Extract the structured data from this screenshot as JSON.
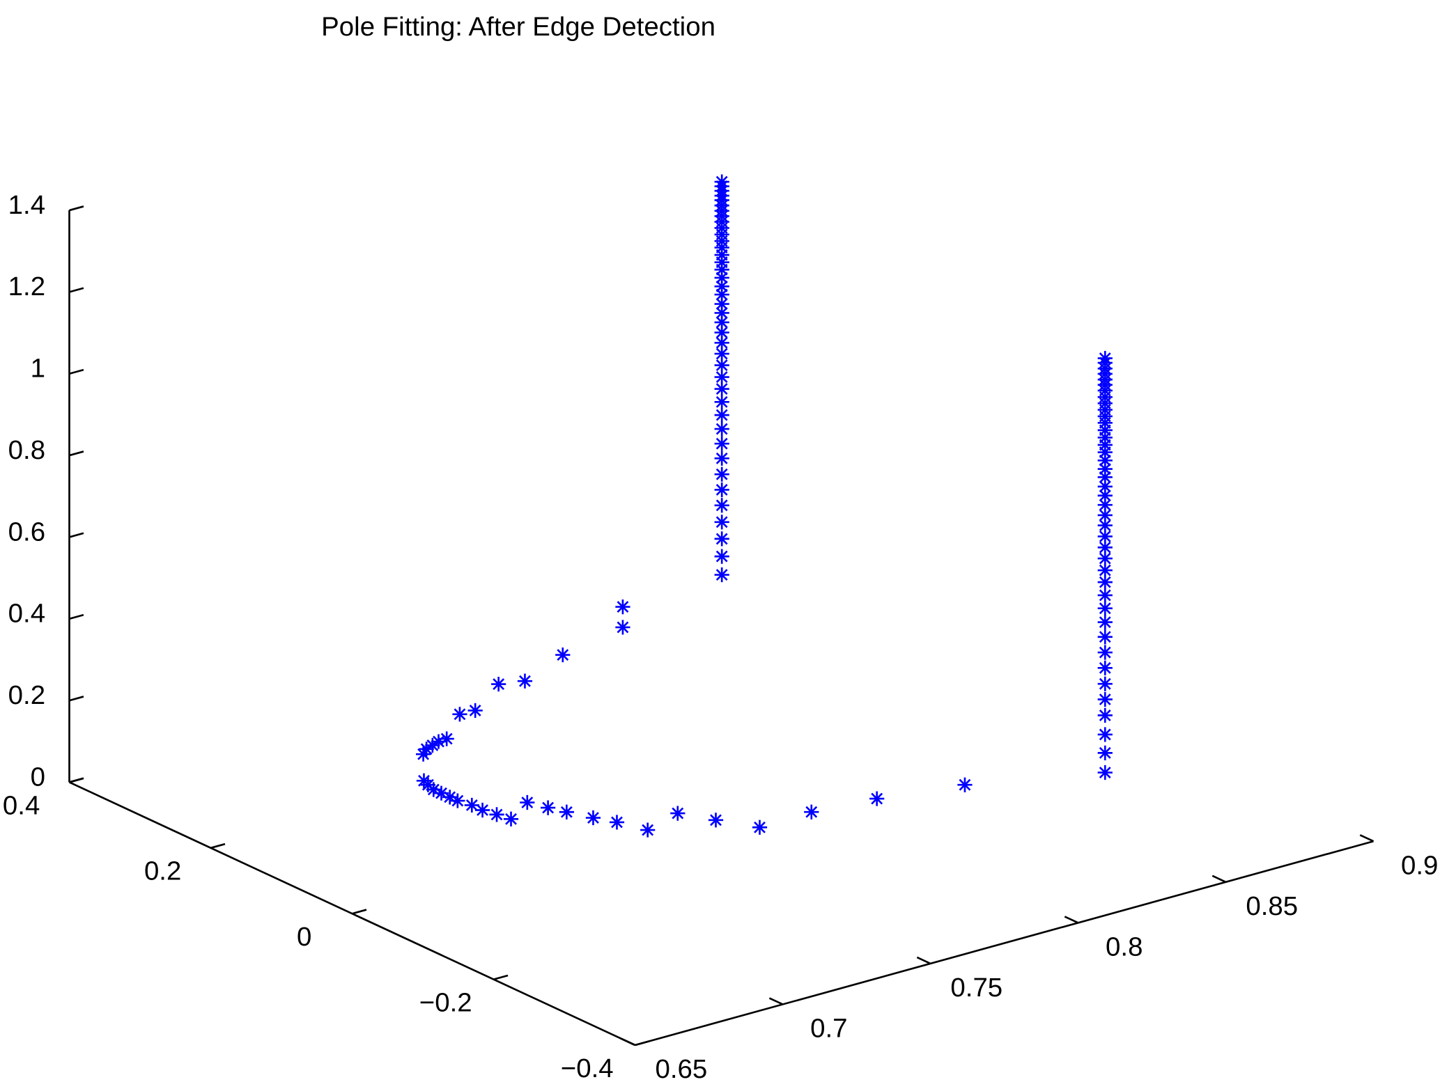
{
  "chart_data": {
    "type": "scatter3d",
    "title": "Pole Fitting: After Edge Detection",
    "xlim": [
      0.65,
      0.9
    ],
    "ylim": [
      -0.4,
      0.4
    ],
    "zlim": [
      0,
      1.4
    ],
    "xticks": [
      0.65,
      0.7,
      0.75,
      0.8,
      0.85,
      0.9
    ],
    "yticks": [
      {
        "value": -0.4,
        "label": "−0.4"
      },
      {
        "value": -0.2,
        "label": "−0.2"
      },
      0,
      0.2,
      0.4
    ],
    "zticks": [
      0,
      0.2,
      0.4,
      0.6,
      0.8,
      1,
      1.2,
      1.4
    ],
    "marker": "asterisk",
    "series": [
      {
        "color": "#0000ff",
        "x": [
          0.839,
          0.814,
          0.794,
          0.776,
          0.77,
          0.765,
          0.751,
          0.748,
          0.745,
          0.742,
          0.74,
          0.738,
          0.727,
          0.726,
          0.725,
          0.725,
          0.724,
          0.724,
          0.724,
          0.724,
          0.725,
          0.726,
          0.738,
          0.741,
          0.744,
          0.747,
          0.75,
          0.764,
          0.769,
          0.786,
          0.793,
          0.813,
          0.835,
          0.835
        ],
        "y": [
          -0.077,
          -0.057,
          -0.048,
          -0.05,
          -0.013,
          0.02,
          0.004,
          0.035,
          0.056,
          0.081,
          0.099,
          0.12,
          0.097,
          0.113,
          0.129,
          0.144,
          0.16,
          0.171,
          0.183,
          0.194,
          0.206,
          0.216,
          0.267,
          0.275,
          0.279,
          0.283,
          0.284,
          0.324,
          0.323,
          0.361,
          0.353,
          0.383,
          0.39,
          0.39
        ],
        "z": [
          0,
          0,
          0,
          0,
          0,
          0,
          0,
          0,
          0,
          0,
          0,
          0,
          0,
          0,
          0,
          0,
          0,
          0,
          0,
          0,
          0,
          0,
          0,
          0,
          0,
          0,
          0,
          0,
          0,
          0,
          0,
          0,
          0.018,
          0.068
        ]
      },
      {
        "color": "#0000ff",
        "x": [
          0.847,
          0.847,
          0.847,
          0.847,
          0.847,
          0.847,
          0.847,
          0.847,
          0.847,
          0.847,
          0.847,
          0.847,
          0.847,
          0.847,
          0.847,
          0.847,
          0.847,
          0.847,
          0.847,
          0.847,
          0.847,
          0.847,
          0.847,
          0.847,
          0.847,
          0.847,
          0.847,
          0.847,
          0.847,
          0.847,
          0.847,
          0.847,
          0.847,
          0.847,
          0.847,
          0.847,
          0.847,
          0.847,
          0.847,
          0.847
        ],
        "y": [
          0.3,
          0.3,
          0.3,
          0.3,
          0.3,
          0.3,
          0.3,
          0.3,
          0.3,
          0.3,
          0.3,
          0.3,
          0.3,
          0.3,
          0.3,
          0.3,
          0.3,
          0.3,
          0.3,
          0.3,
          0.3,
          0.3,
          0.3,
          0.3,
          0.3,
          0.3,
          0.3,
          0.3,
          0.3,
          0.3,
          0.3,
          0.3,
          0.3,
          0.3,
          0.3,
          0.3,
          0.3,
          0.3,
          0.3,
          0.3
        ],
        "z": [
          0.195,
          0.24,
          0.283,
          0.324,
          0.365,
          0.403,
          0.441,
          0.48,
          0.516,
          0.552,
          0.586,
          0.618,
          0.65,
          0.679,
          0.708,
          0.736,
          0.763,
          0.788,
          0.813,
          0.836,
          0.858,
          0.881,
          0.901,
          0.922,
          0.942,
          0.96,
          0.978,
          0.996,
          1.012,
          1.028,
          1.044,
          1.059,
          1.073,
          1.086,
          1.099,
          1.112,
          1.123,
          1.135,
          1.146,
          1.157
        ]
      },
      {
        "color": "#0000ff",
        "x": [
          0.869,
          0.869,
          0.869,
          0.869,
          0.869,
          0.869,
          0.869,
          0.869,
          0.869,
          0.869,
          0.869,
          0.869,
          0.869,
          0.869,
          0.869,
          0.869,
          0.869,
          0.869,
          0.869,
          0.869,
          0.869,
          0.869,
          0.869,
          0.869,
          0.869,
          0.869,
          0.869,
          0.869,
          0.869,
          0.869,
          0.869,
          0.869,
          0.869,
          0.869,
          0.869,
          0.869,
          0.869,
          0.869,
          0.869,
          0.869,
          0.869
        ],
        "y": [
          -0.15,
          -0.15,
          -0.15,
          -0.15,
          -0.15,
          -0.15,
          -0.15,
          -0.15,
          -0.15,
          -0.15,
          -0.15,
          -0.15,
          -0.15,
          -0.15,
          -0.15,
          -0.15,
          -0.15,
          -0.15,
          -0.15,
          -0.15,
          -0.15,
          -0.15,
          -0.15,
          -0.15,
          -0.15,
          -0.15,
          -0.15,
          -0.15,
          -0.15,
          -0.15,
          -0.15,
          -0.15,
          -0.15,
          -0.15,
          -0.15,
          -0.15,
          -0.15,
          -0.15,
          -0.15,
          -0.15,
          -0.15
        ],
        "z": [
          0.029,
          0.077,
          0.122,
          0.169,
          0.208,
          0.246,
          0.285,
          0.323,
          0.361,
          0.397,
          0.431,
          0.463,
          0.495,
          0.524,
          0.553,
          0.58,
          0.607,
          0.634,
          0.659,
          0.684,
          0.707,
          0.729,
          0.752,
          0.772,
          0.793,
          0.813,
          0.831,
          0.849,
          0.867,
          0.885,
          0.901,
          0.917,
          0.933,
          0.948,
          0.964,
          0.978,
          0.991,
          1.005,
          1.018,
          1.032,
          1.043
        ]
      }
    ]
  }
}
